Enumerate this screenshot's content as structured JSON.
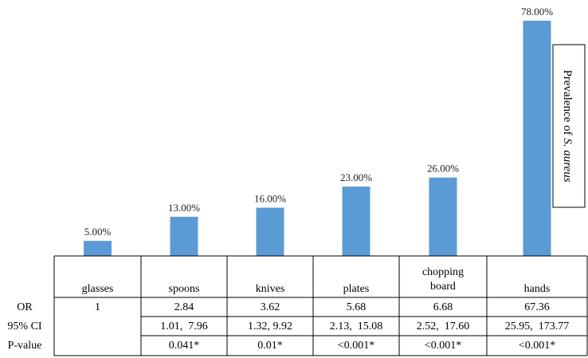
{
  "chart_data": {
    "type": "bar",
    "categories": [
      "glasses",
      "spoons",
      "knives",
      "plates",
      "chopping board",
      "hands"
    ],
    "values": [
      5.0,
      13.0,
      16.0,
      23.0,
      26.0,
      78.0
    ],
    "data_labels": [
      "5.00%",
      "13.00%",
      "16.00%",
      "23.00%",
      "26.00%",
      "78.00%"
    ],
    "ylim": [
      0,
      78
    ],
    "bar_color": "#5b9bd5",
    "legend": {
      "text_plain": "Prevalence of ",
      "text_italic": "S. aureus",
      "position": "right"
    },
    "table": {
      "row_headers": [
        "OR",
        "95% CI",
        "P-value"
      ],
      "rows": [
        [
          "1",
          "2.84",
          "3.62",
          "5.68",
          "6.68",
          "67.36"
        ],
        [
          "",
          "1.01,  7.96",
          "1.32, 9.92",
          "2.13,  15.08",
          "2.52,  17.60",
          "25.95,  173.77"
        ],
        [
          "",
          "0.041*",
          "0.01*",
          "<0.001*",
          "<0.001*",
          "<0.001*"
        ]
      ]
    }
  }
}
